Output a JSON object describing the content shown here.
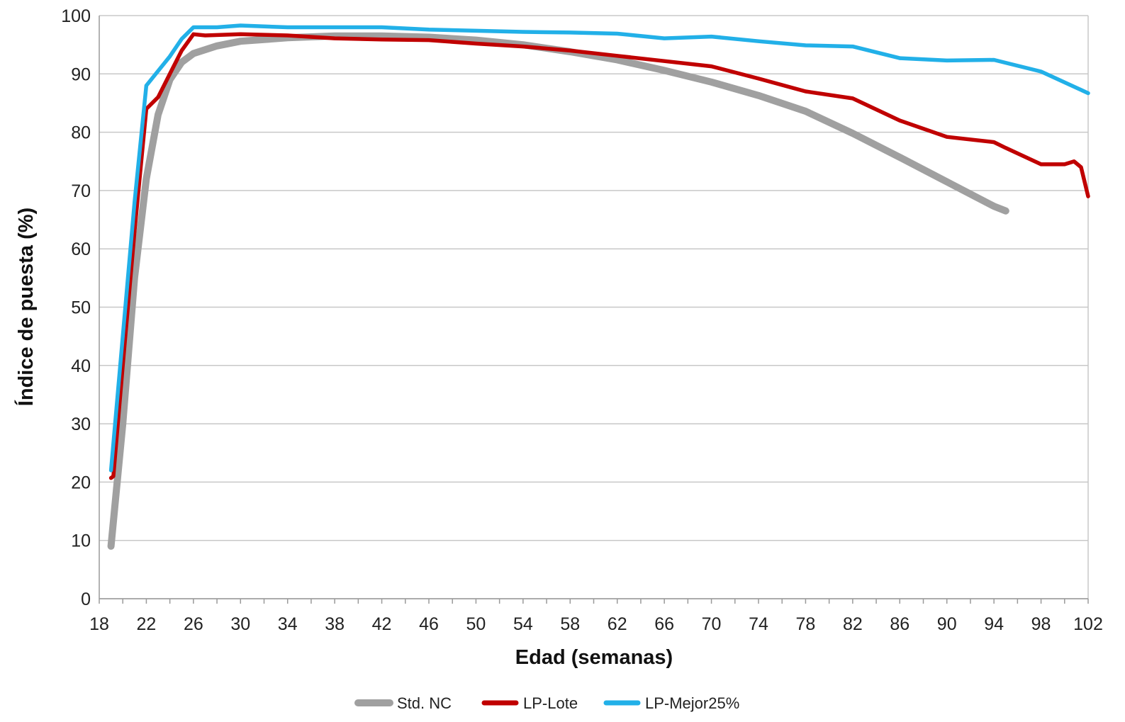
{
  "chart_data": {
    "type": "line",
    "xlabel": "Edad (semanas)",
    "ylabel": "Índice de puesta (%)",
    "xlim": [
      18,
      102
    ],
    "ylim": [
      0,
      100
    ],
    "x_ticks": [
      "18",
      "22",
      "26",
      "30",
      "34",
      "38",
      "42",
      "46",
      "50",
      "54",
      "58",
      "62",
      "66",
      "70",
      "74",
      "78",
      "82",
      "86",
      "90",
      "94",
      "98",
      "102"
    ],
    "y_ticks": [
      "0",
      "10",
      "20",
      "30",
      "40",
      "50",
      "60",
      "70",
      "80",
      "90",
      "100"
    ],
    "grid": "horizontal",
    "legend_position": "bottom",
    "series": [
      {
        "name": "Std. NC",
        "color": "#a0a0a0",
        "points": [
          [
            19,
            9
          ],
          [
            20,
            30
          ],
          [
            21,
            55
          ],
          [
            22,
            72
          ],
          [
            23,
            83
          ],
          [
            24,
            89
          ],
          [
            25,
            92
          ],
          [
            26,
            93.5
          ],
          [
            28,
            94.8
          ],
          [
            30,
            95.6
          ],
          [
            34,
            96.2
          ],
          [
            38,
            96.5
          ],
          [
            42,
            96.5
          ],
          [
            46,
            96.3
          ],
          [
            50,
            95.8
          ],
          [
            54,
            95
          ],
          [
            58,
            93.8
          ],
          [
            62,
            92.4
          ],
          [
            66,
            90.6
          ],
          [
            70,
            88.6
          ],
          [
            74,
            86.3
          ],
          [
            78,
            83.6
          ],
          [
            82,
            79.8
          ],
          [
            86,
            75.7
          ],
          [
            90,
            71.5
          ],
          [
            94,
            67.3
          ],
          [
            95,
            66.5
          ]
        ]
      },
      {
        "name": "LP-Lote",
        "color": "#c00000",
        "points": [
          [
            19,
            20.7
          ],
          [
            19.2,
            21
          ],
          [
            20,
            40
          ],
          [
            21,
            63
          ],
          [
            22,
            84
          ],
          [
            23,
            86
          ],
          [
            24,
            90
          ],
          [
            25,
            94
          ],
          [
            26,
            96.8
          ],
          [
            27,
            96.6
          ],
          [
            30,
            96.8
          ],
          [
            34,
            96.6
          ],
          [
            38,
            96.1
          ],
          [
            42,
            95.9
          ],
          [
            46,
            95.8
          ],
          [
            50,
            95.2
          ],
          [
            54,
            94.7
          ],
          [
            58,
            94
          ],
          [
            62,
            93.1
          ],
          [
            66,
            92.2
          ],
          [
            70,
            91.3
          ],
          [
            74,
            89.2
          ],
          [
            78,
            87
          ],
          [
            82,
            85.8
          ],
          [
            86,
            82
          ],
          [
            90,
            79.2
          ],
          [
            94,
            78.3
          ],
          [
            95,
            77.3
          ],
          [
            98,
            74.5
          ],
          [
            100,
            74.5
          ],
          [
            100.8,
            75
          ],
          [
            101.4,
            74
          ],
          [
            102,
            69
          ]
        ]
      },
      {
        "name": "LP-Mejor25%",
        "color": "#22b0e8",
        "points": [
          [
            19,
            22
          ],
          [
            20,
            45
          ],
          [
            21,
            68
          ],
          [
            22,
            88
          ],
          [
            23,
            90.5
          ],
          [
            24,
            93
          ],
          [
            25,
            96
          ],
          [
            26,
            98
          ],
          [
            28,
            98
          ],
          [
            30,
            98.3
          ],
          [
            34,
            98
          ],
          [
            38,
            98
          ],
          [
            42,
            98
          ],
          [
            46,
            97.6
          ],
          [
            50,
            97.4
          ],
          [
            54,
            97.2
          ],
          [
            58,
            97.1
          ],
          [
            62,
            96.9
          ],
          [
            66,
            96.1
          ],
          [
            70,
            96.4
          ],
          [
            74,
            95.6
          ],
          [
            78,
            94.9
          ],
          [
            82,
            94.7
          ],
          [
            86,
            92.7
          ],
          [
            90,
            92.3
          ],
          [
            94,
            92.4
          ],
          [
            98,
            90.4
          ],
          [
            102,
            86.7
          ]
        ]
      }
    ]
  }
}
